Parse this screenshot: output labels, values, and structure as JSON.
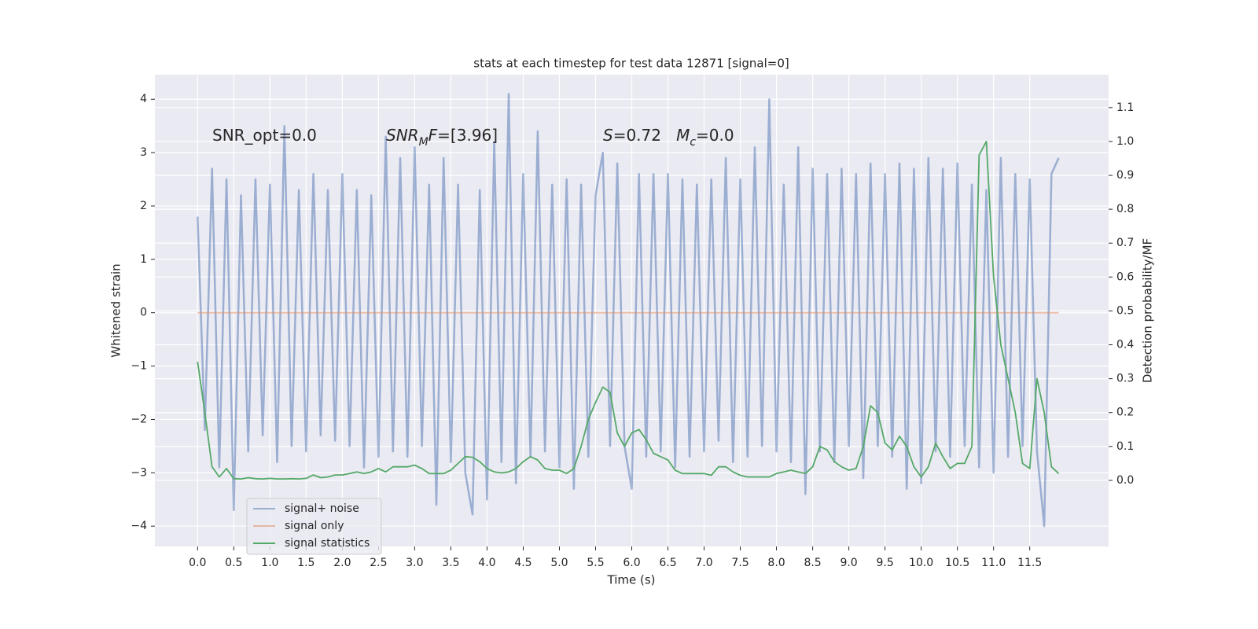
{
  "chart_data": {
    "type": "line",
    "title": "stats at each timestep for test data 12871 [signal=0]",
    "xlabel": "Time (s)",
    "ylabel": "Whitened strain",
    "y2label": "Detection probability/MF",
    "annotations": [
      [
        {
          "text": "SNR_opt=0.0",
          "style": "normal"
        }
      ],
      [
        {
          "text": "SNR",
          "style": "italic"
        },
        {
          "text": "M",
          "style": "sub"
        },
        {
          "text": "F",
          "style": "italic"
        },
        {
          "text": "=[3.96]",
          "style": "normal"
        }
      ],
      [
        {
          "text": "S",
          "style": "italic"
        },
        {
          "text": "=0.72   ",
          "style": "normal"
        },
        {
          "text": "M",
          "style": "italic"
        },
        {
          "text": "c",
          "style": "sub"
        },
        {
          "text": "=0.0",
          "style": "normal"
        }
      ]
    ],
    "x": [
      0,
      0.1,
      0.2,
      0.3,
      0.4,
      0.5,
      0.6,
      0.7,
      0.8,
      0.9,
      1,
      1.1,
      1.2,
      1.3,
      1.4,
      1.5,
      1.6,
      1.7,
      1.8,
      1.9,
      2,
      2.1,
      2.2,
      2.3,
      2.4,
      2.5,
      2.6,
      2.7,
      2.8,
      2.9,
      3,
      3.1,
      3.2,
      3.3,
      3.4,
      3.5,
      3.6,
      3.7,
      3.8,
      3.9,
      4,
      4.1,
      4.2,
      4.3,
      4.4,
      4.5,
      4.6,
      4.7,
      4.8,
      4.9,
      5,
      5.1,
      5.2,
      5.3,
      5.4,
      5.5,
      5.6,
      5.7,
      5.8,
      5.9,
      6,
      6.1,
      6.2,
      6.3,
      6.4,
      6.5,
      6.6,
      6.7,
      6.8,
      6.9,
      7,
      7.1,
      7.2,
      7.3,
      7.4,
      7.5,
      7.6,
      7.7,
      7.8,
      7.9,
      8,
      8.1,
      8.2,
      8.3,
      8.4,
      8.5,
      8.6,
      8.7,
      8.8,
      8.9,
      9,
      9.1,
      9.2,
      9.3,
      9.4,
      9.5,
      9.6,
      9.7,
      9.8,
      9.9,
      10,
      10.1,
      10.2,
      10.3,
      10.4,
      10.5,
      10.6,
      10.7,
      10.8,
      10.9,
      11,
      11.1,
      11.2,
      11.3,
      11.4,
      11.5,
      11.6,
      11.7,
      11.8,
      11.9
    ],
    "series": [
      {
        "name": "signal+ noise",
        "color": "#4c72b0",
        "alpha": 0.5,
        "values": [
          1.8,
          -2.2,
          2.7,
          -2.9,
          2.5,
          -3.7,
          2.2,
          -2.6,
          2.5,
          -2.3,
          2.4,
          -2.8,
          3.5,
          -2.5,
          2.3,
          -2.6,
          2.6,
          -2.3,
          2.3,
          -2.4,
          2.6,
          -2.5,
          2.3,
          -2.9,
          2.2,
          -2.7,
          3.3,
          -2.6,
          2.9,
          -2.7,
          3.1,
          -2.5,
          2.4,
          -3.6,
          2.9,
          -2.8,
          2.4,
          -3.0,
          -3.78,
          2.3,
          -3.5,
          3.2,
          -2.8,
          4.1,
          -3.2,
          2.6,
          -2.7,
          3.4,
          -2.6,
          2.4,
          -2.9,
          2.5,
          -3.3,
          2.4,
          -2.7,
          2.2,
          3.0,
          -2.5,
          2.8,
          -2.5,
          -3.3,
          2.6,
          -2.7,
          2.6,
          -2.6,
          2.6,
          -2.9,
          2.5,
          -2.7,
          2.4,
          -2.6,
          2.5,
          -2.4,
          2.9,
          -2.8,
          2.5,
          -2.7,
          3.1,
          -2.5,
          4.0,
          -2.6,
          2.4,
          -2.8,
          3.1,
          -3.4,
          2.7,
          -2.6,
          2.6,
          -2.8,
          2.7,
          -2.5,
          2.6,
          -3.1,
          2.8,
          -2.5,
          2.6,
          -2.7,
          2.8,
          -3.3,
          2.7,
          -3.2,
          2.9,
          -2.6,
          2.7,
          -2.7,
          2.8,
          -2.5,
          2.4,
          -2.9,
          2.3,
          -3.0,
          2.9,
          -2.7,
          2.6,
          -2.5,
          2.5,
          -2.6,
          -4.0,
          2.6,
          2.9
        ]
      },
      {
        "name": "signal only",
        "color": "#dd8452",
        "alpha": 0.5,
        "values": [
          0,
          0,
          0,
          0,
          0,
          0,
          0,
          0,
          0,
          0,
          0,
          0,
          0,
          0,
          0,
          0,
          0,
          0,
          0,
          0,
          0,
          0,
          0,
          0,
          0,
          0,
          0,
          0,
          0,
          0,
          0,
          0,
          0,
          0,
          0,
          0,
          0,
          0,
          0,
          0,
          0,
          0,
          0,
          0,
          0,
          0,
          0,
          0,
          0,
          0,
          0,
          0,
          0,
          0,
          0,
          0,
          0,
          0,
          0,
          0,
          0,
          0,
          0,
          0,
          0,
          0,
          0,
          0,
          0,
          0,
          0,
          0,
          0,
          0,
          0,
          0,
          0,
          0,
          0,
          0,
          0,
          0,
          0,
          0,
          0,
          0,
          0,
          0,
          0,
          0,
          0,
          0,
          0,
          0,
          0,
          0,
          0,
          0,
          0,
          0,
          0,
          0,
          0,
          0,
          0,
          0,
          0,
          0,
          0,
          0,
          0,
          0,
          0,
          0,
          0,
          0,
          0,
          0,
          0,
          0
        ]
      },
      {
        "name": "signal statistics",
        "color": "#55a868",
        "alpha": 1,
        "axis": "y2",
        "values": [
          0.35,
          0.2,
          0.04,
          0.01,
          0.035,
          0.005,
          0.004,
          0.008,
          0.005,
          0.004,
          0.006,
          0.004,
          0.004,
          0.005,
          0.004,
          0.006,
          0.016,
          0.008,
          0.01,
          0.016,
          0.016,
          0.02,
          0.025,
          0.02,
          0.025,
          0.035,
          0.025,
          0.04,
          0.04,
          0.04,
          0.045,
          0.035,
          0.02,
          0.02,
          0.02,
          0.03,
          0.05,
          0.07,
          0.068,
          0.055,
          0.035,
          0.025,
          0.022,
          0.025,
          0.035,
          0.055,
          0.07,
          0.06,
          0.035,
          0.03,
          0.03,
          0.02,
          0.035,
          0.1,
          0.18,
          0.23,
          0.275,
          0.26,
          0.14,
          0.1,
          0.14,
          0.15,
          0.12,
          0.08,
          0.07,
          0.06,
          0.03,
          0.02,
          0.02,
          0.02,
          0.02,
          0.015,
          0.04,
          0.04,
          0.025,
          0.015,
          0.01,
          0.01,
          0.01,
          0.01,
          0.02,
          0.025,
          0.03,
          0.025,
          0.02,
          0.04,
          0.1,
          0.09,
          0.055,
          0.04,
          0.03,
          0.035,
          0.1,
          0.22,
          0.2,
          0.11,
          0.09,
          0.13,
          0.1,
          0.04,
          0.01,
          0.04,
          0.11,
          0.07,
          0.035,
          0.05,
          0.05,
          0.1,
          0.96,
          1.0,
          0.6,
          0.4,
          0.3,
          0.2,
          0.05,
          0.035,
          0.3,
          0.2,
          0.04,
          0.02
        ]
      }
    ],
    "xlim": [
      -0.59,
      12.59
    ],
    "ylim": [
      -4.38,
      4.46
    ],
    "y2lim": [
      -0.195,
      1.197
    ],
    "xticks": [
      {
        "value": 0,
        "label": "0.0"
      },
      0.5,
      {
        "value": 1,
        "label": "1.0"
      },
      1.5,
      {
        "value": 2,
        "label": "2.0"
      },
      2.5,
      {
        "value": 3,
        "label": "3.0"
      },
      3.5,
      {
        "value": 4,
        "label": "4.0"
      },
      4.5,
      {
        "value": 5,
        "label": "5.0"
      },
      5.5,
      {
        "value": 6,
        "label": "6.0"
      },
      6.5,
      {
        "value": 7,
        "label": "7.0"
      },
      7.5,
      {
        "value": 8,
        "label": "8.0"
      },
      8.5,
      {
        "value": 9,
        "label": "9.0"
      },
      9.5,
      {
        "value": 10,
        "label": "10.0"
      },
      10.5,
      {
        "value": 11,
        "label": "11.0"
      },
      11.5
    ],
    "yticks": [
      {
        "value": -4,
        "label": "−4"
      },
      {
        "value": -3,
        "label": "−3"
      },
      {
        "value": -2,
        "label": "−2"
      },
      {
        "value": -1,
        "label": "−1"
      },
      0,
      1,
      2,
      3,
      4
    ],
    "y2ticks": [
      {
        "value": 0,
        "label": "0.0"
      },
      0.1,
      0.2,
      0.3,
      0.4,
      0.5,
      0.6,
      0.7,
      0.8,
      0.9,
      {
        "value": 1,
        "label": "1.0"
      },
      1.1
    ],
    "grid": true,
    "legend": "lower left"
  }
}
